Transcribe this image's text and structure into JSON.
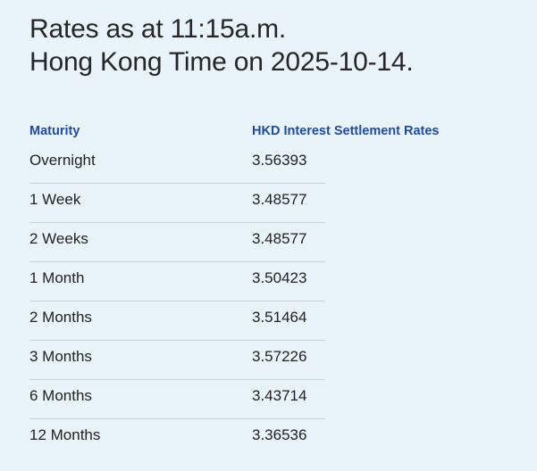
{
  "heading": {
    "line1": "Rates as at 11:15a.m.",
    "line2": "Hong Kong Time on 2025-10-14."
  },
  "table": {
    "columns": {
      "maturity": "Maturity",
      "rate": "HKD Interest Settlement Rates"
    },
    "rows": [
      {
        "maturity": "Overnight",
        "rate": "3.56393"
      },
      {
        "maturity": "1 Week",
        "rate": "3.48577"
      },
      {
        "maturity": "2 Weeks",
        "rate": "3.48577"
      },
      {
        "maturity": "1 Month",
        "rate": "3.50423"
      },
      {
        "maturity": "2 Months",
        "rate": "3.51464"
      },
      {
        "maturity": "3 Months",
        "rate": "3.57226"
      },
      {
        "maturity": "6 Months",
        "rate": "3.43714"
      },
      {
        "maturity": "12 Months",
        "rate": "3.36536"
      }
    ]
  }
}
